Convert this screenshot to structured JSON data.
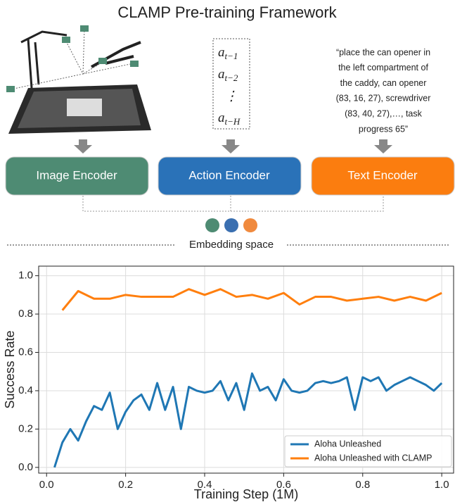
{
  "diagram": {
    "title": "CLAMP Pre-training Framework",
    "actions": [
      {
        "base": "a",
        "sub": "t−1"
      },
      {
        "base": "a",
        "sub": "t−2"
      },
      "⋮",
      {
        "base": "a",
        "sub": "t−H"
      }
    ],
    "prompt_lines": [
      "“place the can opener in",
      "the left compartment of",
      "the caddy, can opener",
      "(83, 16, 27), screwdriver",
      "(83, 40, 27),…, task",
      "progress 65”"
    ],
    "encoders": [
      "Image Encoder",
      "Action Encoder",
      "Text Encoder"
    ],
    "embedding_label": "Embedding space"
  },
  "chart_data": {
    "type": "line",
    "xlabel": "Training Step (1M)",
    "ylabel": "Success Rate",
    "xlim": [
      -0.02,
      1.03
    ],
    "ylim": [
      -0.03,
      1.05
    ],
    "xticks": [
      {
        "value": 0,
        "label": "0.0"
      },
      {
        "value": 0.2,
        "label": "0.2"
      },
      {
        "value": 0.4,
        "label": "0.4"
      },
      {
        "value": 0.6,
        "label": "0.6"
      },
      {
        "value": 0.8,
        "label": "0.8"
      },
      {
        "value": 1,
        "label": "1.0"
      }
    ],
    "yticks": [
      {
        "value": 0,
        "label": "0.0"
      },
      {
        "value": 0.2,
        "label": "0.2"
      },
      {
        "value": 0.4,
        "label": "0.4"
      },
      {
        "value": 0.6,
        "label": "0.6"
      },
      {
        "value": 0.8,
        "label": "0.8"
      },
      {
        "value": 1,
        "label": "1.0"
      }
    ],
    "grid": true,
    "legend": "lower right",
    "series": [
      {
        "name": "Aloha Unleashed",
        "color": "#1f77b4",
        "x": [
          0.02,
          0.04,
          0.06,
          0.08,
          0.1,
          0.12,
          0.14,
          0.16,
          0.18,
          0.2,
          0.22,
          0.24,
          0.26,
          0.28,
          0.3,
          0.32,
          0.34,
          0.36,
          0.38,
          0.4,
          0.42,
          0.44,
          0.46,
          0.48,
          0.5,
          0.52,
          0.54,
          0.56,
          0.58,
          0.6,
          0.62,
          0.64,
          0.66,
          0.68,
          0.7,
          0.72,
          0.74,
          0.76,
          0.78,
          0.8,
          0.82,
          0.84,
          0.86,
          0.88,
          0.9,
          0.92,
          0.94,
          0.96,
          0.98,
          1.0
        ],
        "values": [
          0.0,
          0.13,
          0.2,
          0.14,
          0.24,
          0.32,
          0.3,
          0.39,
          0.2,
          0.29,
          0.35,
          0.38,
          0.3,
          0.44,
          0.3,
          0.42,
          0.2,
          0.42,
          0.4,
          0.39,
          0.4,
          0.45,
          0.35,
          0.44,
          0.3,
          0.49,
          0.4,
          0.42,
          0.35,
          0.46,
          0.4,
          0.39,
          0.4,
          0.44,
          0.45,
          0.44,
          0.45,
          0.47,
          0.3,
          0.47,
          0.45,
          0.47,
          0.4,
          0.43,
          0.45,
          0.47,
          0.45,
          0.43,
          0.4,
          0.44
        ]
      },
      {
        "name": "Aloha Unleashed with CLAMP",
        "color": "#ff7f0e",
        "x": [
          0.04,
          0.08,
          0.12,
          0.16,
          0.2,
          0.24,
          0.28,
          0.32,
          0.36,
          0.4,
          0.44,
          0.48,
          0.52,
          0.56,
          0.6,
          0.64,
          0.68,
          0.72,
          0.76,
          0.8,
          0.84,
          0.88,
          0.92,
          0.96,
          1.0
        ],
        "values": [
          0.82,
          0.92,
          0.88,
          0.88,
          0.9,
          0.89,
          0.89,
          0.89,
          0.93,
          0.9,
          0.93,
          0.89,
          0.9,
          0.88,
          0.91,
          0.85,
          0.89,
          0.89,
          0.87,
          0.88,
          0.89,
          0.87,
          0.89,
          0.87,
          0.91
        ]
      }
    ]
  }
}
